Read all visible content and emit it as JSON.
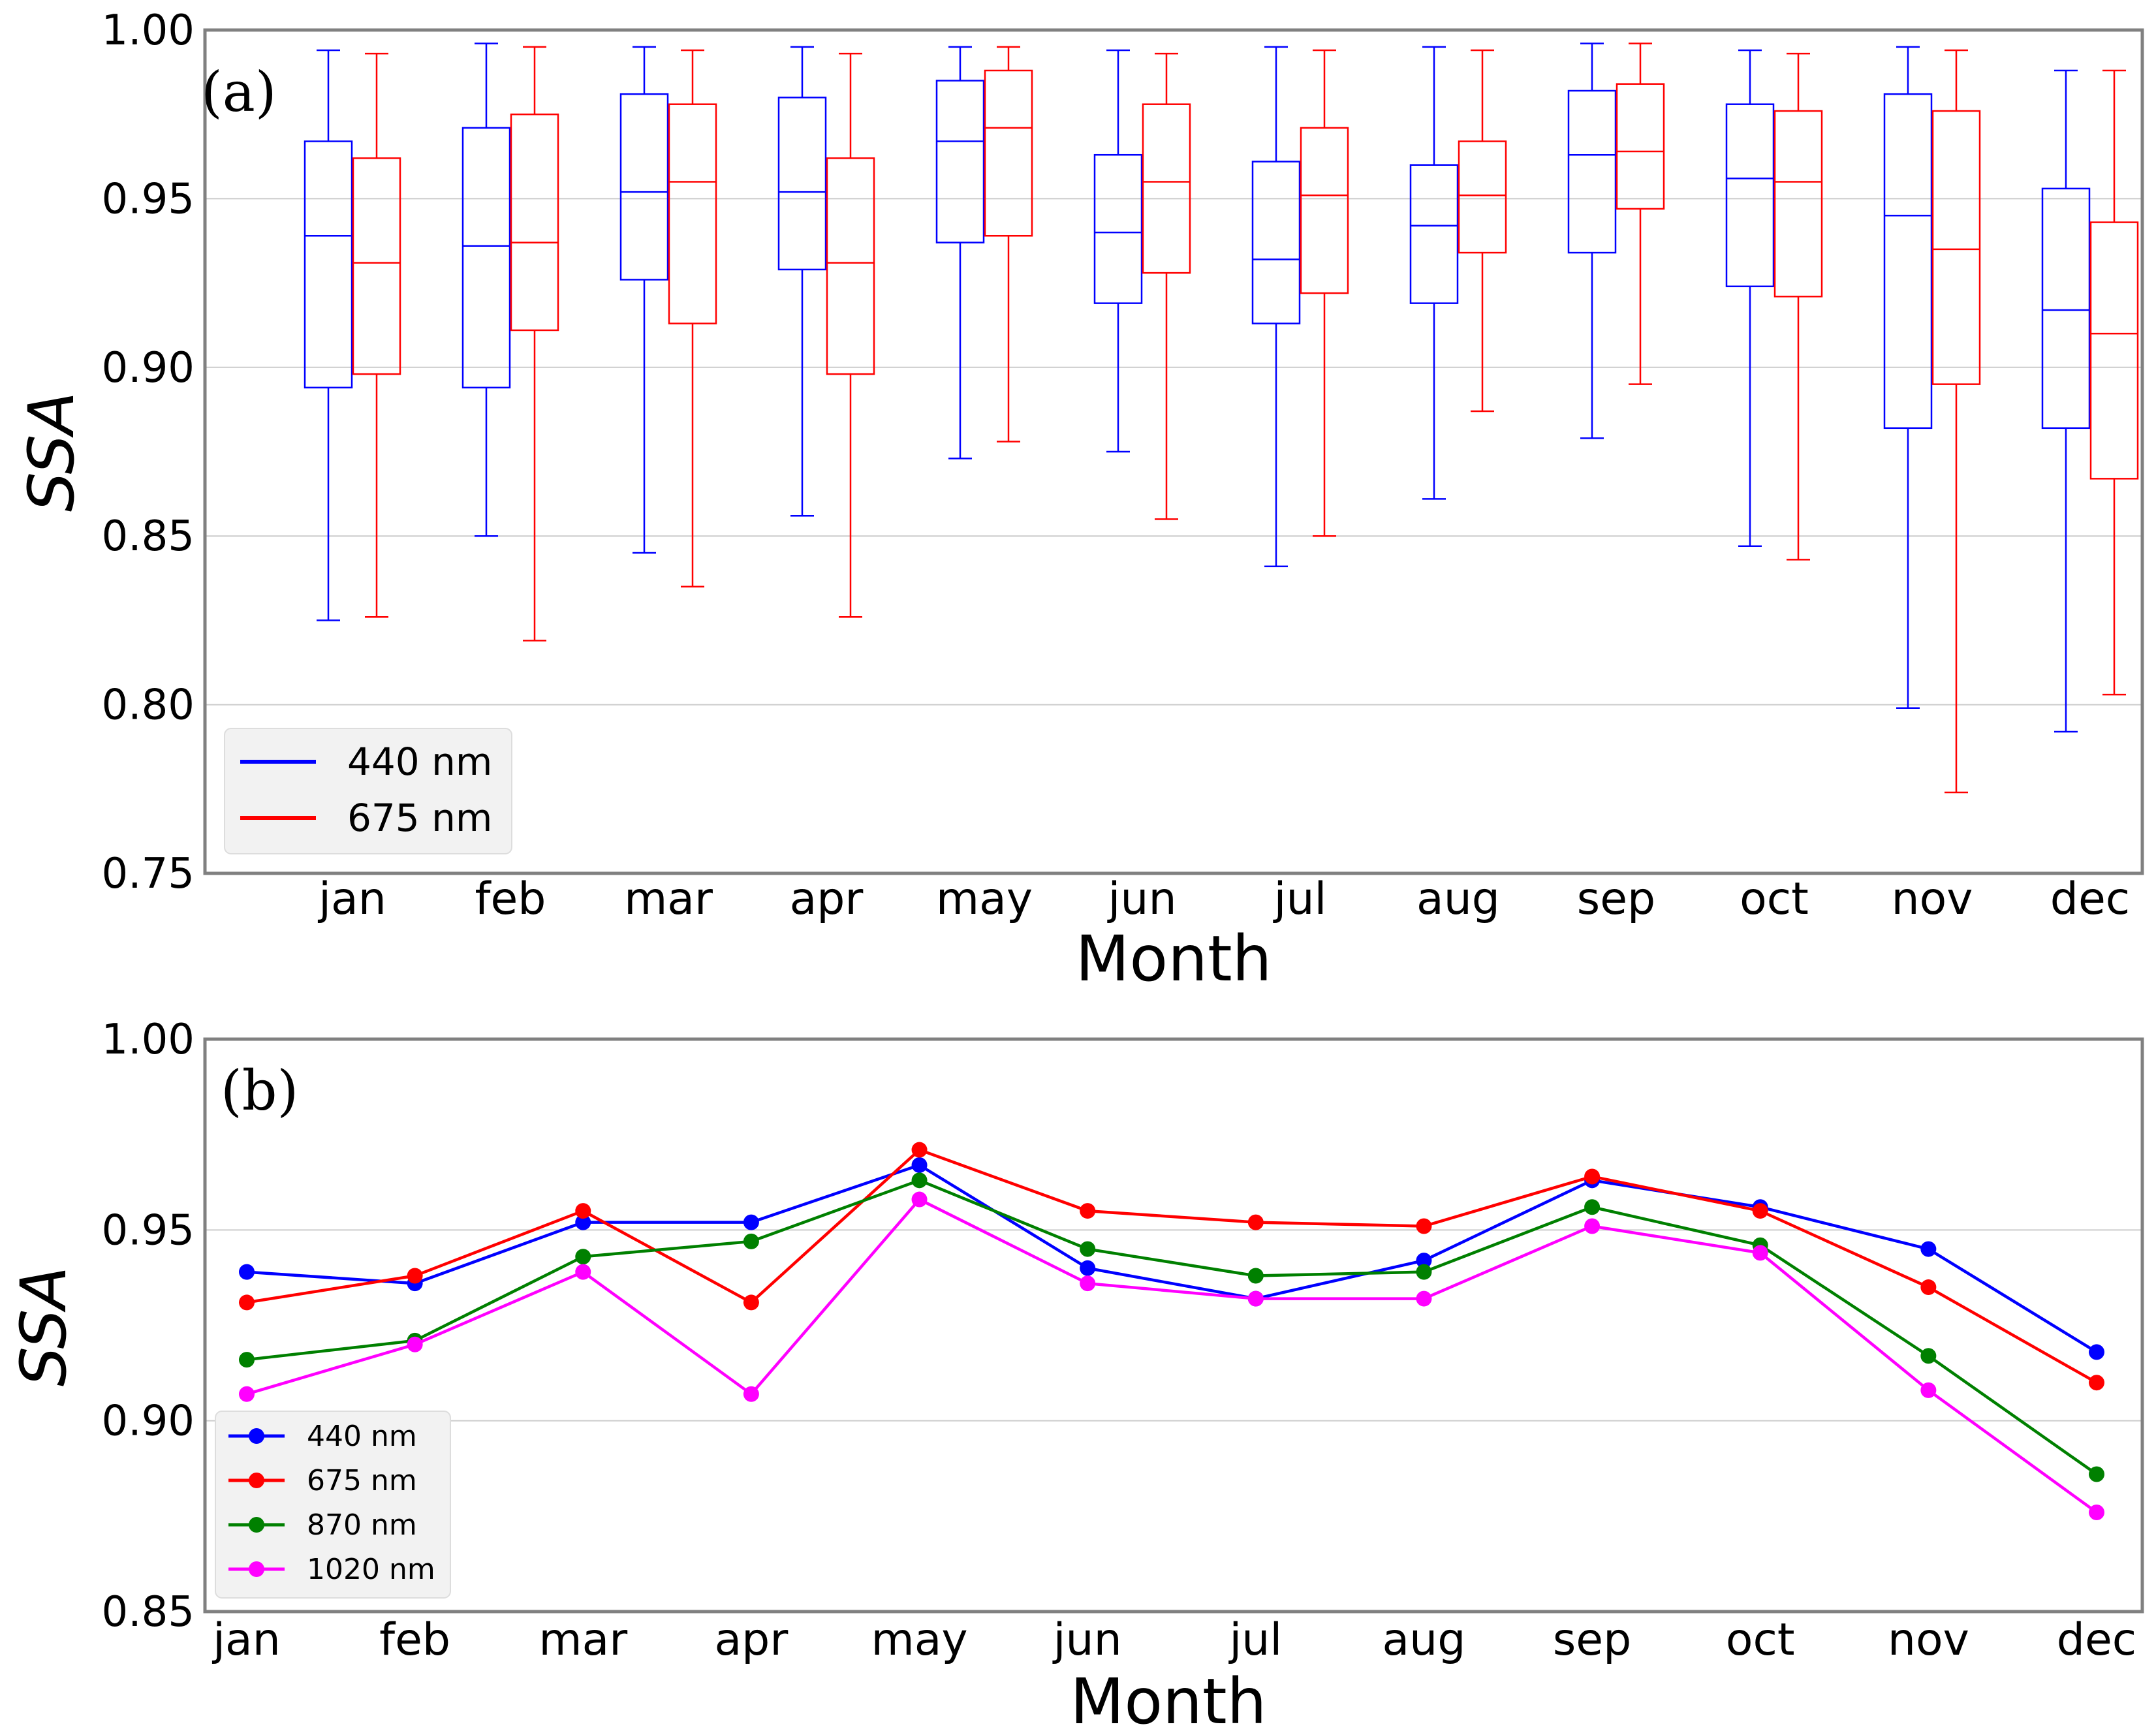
{
  "chart_data": [
    {
      "type": "box",
      "panel_label": "(a)",
      "title": "",
      "xlabel": "Month",
      "ylabel": "SSA",
      "ylim": [
        0.75,
        1.0
      ],
      "yticks": [
        "0.75",
        "0.80",
        "0.85",
        "0.90",
        "0.95",
        "1.00"
      ],
      "categories": [
        "jan",
        "feb",
        "mar",
        "apr",
        "may",
        "jun",
        "jul",
        "aug",
        "sep",
        "oct",
        "nov",
        "dec"
      ],
      "legend_position": "lower-left",
      "series": [
        {
          "name": "440 nm",
          "color": "#0000ff",
          "boxes": [
            {
              "whislo": 0.825,
              "q1": 0.894,
              "med": 0.939,
              "q3": 0.967,
              "whishi": 0.994
            },
            {
              "whislo": 0.85,
              "q1": 0.894,
              "med": 0.936,
              "q3": 0.971,
              "whishi": 0.996
            },
            {
              "whislo": 0.845,
              "q1": 0.926,
              "med": 0.952,
              "q3": 0.981,
              "whishi": 0.995
            },
            {
              "whislo": 0.856,
              "q1": 0.929,
              "med": 0.952,
              "q3": 0.98,
              "whishi": 0.995
            },
            {
              "whislo": 0.873,
              "q1": 0.937,
              "med": 0.967,
              "q3": 0.985,
              "whishi": 0.995
            },
            {
              "whislo": 0.875,
              "q1": 0.919,
              "med": 0.94,
              "q3": 0.963,
              "whishi": 0.994
            },
            {
              "whislo": 0.841,
              "q1": 0.913,
              "med": 0.932,
              "q3": 0.961,
              "whishi": 0.995
            },
            {
              "whislo": 0.861,
              "q1": 0.919,
              "med": 0.942,
              "q3": 0.96,
              "whishi": 0.995
            },
            {
              "whislo": 0.879,
              "q1": 0.934,
              "med": 0.963,
              "q3": 0.982,
              "whishi": 0.996
            },
            {
              "whislo": 0.847,
              "q1": 0.924,
              "med": 0.956,
              "q3": 0.978,
              "whishi": 0.994
            },
            {
              "whislo": 0.799,
              "q1": 0.882,
              "med": 0.945,
              "q3": 0.981,
              "whishi": 0.995
            },
            {
              "whislo": 0.792,
              "q1": 0.882,
              "med": 0.917,
              "q3": 0.953,
              "whishi": 0.988
            }
          ]
        },
        {
          "name": "675 nm",
          "color": "#ff0000",
          "boxes": [
            {
              "whislo": 0.826,
              "q1": 0.898,
              "med": 0.931,
              "q3": 0.962,
              "whishi": 0.993
            },
            {
              "whislo": 0.819,
              "q1": 0.911,
              "med": 0.937,
              "q3": 0.975,
              "whishi": 0.995
            },
            {
              "whislo": 0.835,
              "q1": 0.913,
              "med": 0.955,
              "q3": 0.978,
              "whishi": 0.994
            },
            {
              "whislo": 0.826,
              "q1": 0.898,
              "med": 0.931,
              "q3": 0.962,
              "whishi": 0.993
            },
            {
              "whislo": 0.878,
              "q1": 0.939,
              "med": 0.971,
              "q3": 0.988,
              "whishi": 0.995
            },
            {
              "whislo": 0.855,
              "q1": 0.928,
              "med": 0.955,
              "q3": 0.978,
              "whishi": 0.993
            },
            {
              "whislo": 0.85,
              "q1": 0.922,
              "med": 0.951,
              "q3": 0.971,
              "whishi": 0.994
            },
            {
              "whislo": 0.887,
              "q1": 0.934,
              "med": 0.951,
              "q3": 0.967,
              "whishi": 0.994
            },
            {
              "whislo": 0.895,
              "q1": 0.947,
              "med": 0.964,
              "q3": 0.984,
              "whishi": 0.996
            },
            {
              "whislo": 0.843,
              "q1": 0.921,
              "med": 0.955,
              "q3": 0.976,
              "whishi": 0.993
            },
            {
              "whislo": 0.774,
              "q1": 0.895,
              "med": 0.935,
              "q3": 0.976,
              "whishi": 0.994
            },
            {
              "whislo": 0.803,
              "q1": 0.867,
              "med": 0.91,
              "q3": 0.943,
              "whishi": 0.988
            }
          ]
        }
      ]
    },
    {
      "type": "line",
      "panel_label": "(b)",
      "title": "",
      "xlabel": "Month",
      "ylabel": "SSA",
      "ylim": [
        0.85,
        1.0
      ],
      "yticks": [
        "0.85",
        "0.90",
        "0.95",
        "1.00"
      ],
      "categories": [
        "jan",
        "feb",
        "mar",
        "apr",
        "may",
        "jun",
        "jul",
        "aug",
        "sep",
        "oct",
        "nov",
        "dec"
      ],
      "legend_position": "lower-left",
      "series": [
        {
          "name": "440 nm",
          "color": "#0000ff",
          "values": [
            0.939,
            0.936,
            0.952,
            0.952,
            0.967,
            0.94,
            0.932,
            0.942,
            0.963,
            0.956,
            0.945,
            0.918
          ]
        },
        {
          "name": "675 nm",
          "color": "#ff0000",
          "values": [
            0.931,
            0.938,
            0.955,
            0.931,
            0.971,
            0.955,
            0.952,
            0.951,
            0.964,
            0.955,
            0.935,
            0.91
          ]
        },
        {
          "name": "870 nm",
          "color": "#008000",
          "values": [
            0.916,
            0.921,
            0.943,
            0.947,
            0.963,
            0.945,
            0.938,
            0.939,
            0.956,
            0.946,
            0.917,
            0.886
          ]
        },
        {
          "name": "1020 nm",
          "color": "#ff00ff",
          "values": [
            0.907,
            0.92,
            0.939,
            0.907,
            0.958,
            0.936,
            0.932,
            0.932,
            0.951,
            0.944,
            0.908,
            0.876
          ]
        }
      ]
    }
  ]
}
